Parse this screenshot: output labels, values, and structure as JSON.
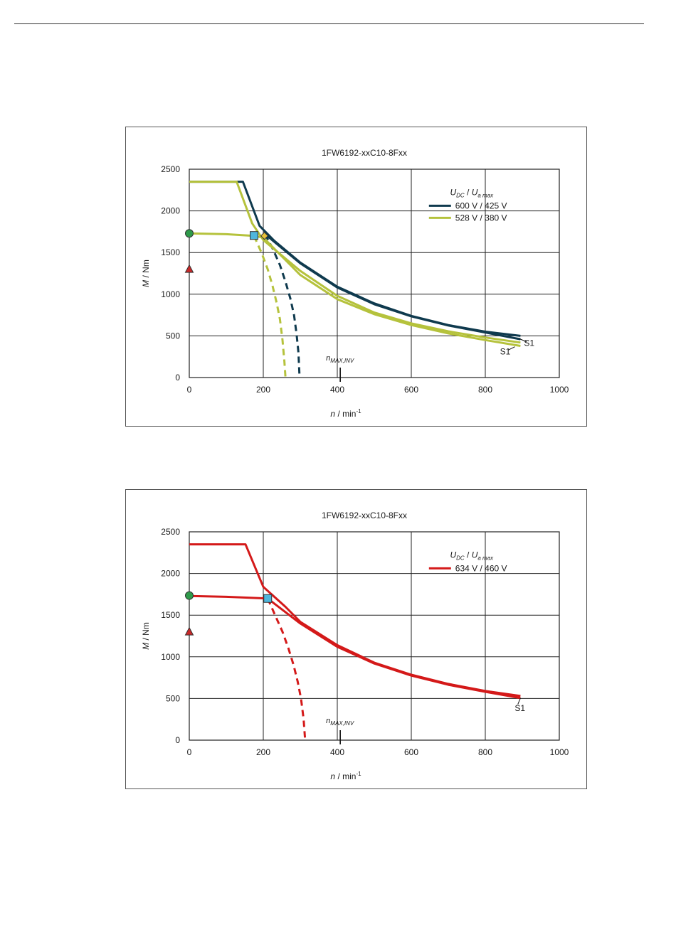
{
  "colors": {
    "grid": "#222222",
    "dark_blue": "#0f3a4e",
    "olive": "#b5c23c",
    "red": "#d41919",
    "marker_green": "#2e9a4a",
    "marker_red": "#c82828",
    "marker_cyan": "#4fb6dc",
    "marker_yellow": "#e8c23a"
  },
  "chart_data": [
    {
      "type": "line",
      "title": "1FW6192-xxC10-8Fxx",
      "xlabel_var": "n",
      "xlabel_unit": " / min",
      "xlabel_exp": "-1",
      "ylabel_var": "M",
      "ylabel_unit": " / Nm",
      "xlim": [
        0,
        1000
      ],
      "ylim": [
        0,
        2500
      ],
      "xticks": [
        0,
        200,
        400,
        600,
        800,
        1000
      ],
      "yticks": [
        0,
        500,
        1000,
        1500,
        2000,
        2500
      ],
      "grid": true,
      "legend_position": "top-right",
      "legend_header": {
        "u1": "U",
        "sub1": "DC",
        "sep": "  /  ",
        "u2": "U",
        "sub2": "a max"
      },
      "nmax_label": {
        "main": "n",
        "sub": "MAX,INV"
      },
      "nmax_x": 408,
      "series": [
        {
          "name": "600 V / 425 V",
          "color": "dark_blue",
          "segments": [
            {
              "style": "solid",
              "points": [
                [
                  0,
                  2350
                ],
                [
                  145,
                  2350
                ],
                [
                  190,
                  1820
                ],
                [
                  230,
                  1640
                ],
                [
                  300,
                  1380
                ],
                [
                  400,
                  1090
                ],
                [
                  500,
                  890
                ],
                [
                  600,
                  740
                ],
                [
                  700,
                  630
                ],
                [
                  800,
                  550
                ],
                [
                  895,
                  500
                ]
              ]
            },
            {
              "style": "solid",
              "points": [
                [
                  205,
                  1720
                ],
                [
                  300,
                  1370
                ],
                [
                  400,
                  1080
                ],
                [
                  500,
                  880
                ],
                [
                  600,
                  735
                ],
                [
                  700,
                  625
                ],
                [
                  800,
                  540
                ],
                [
                  895,
                  460
                ]
              ]
            },
            {
              "style": "dashed",
              "points": [
                [
                  205,
                  1720
                ],
                [
                  225,
                  1550
                ],
                [
                  245,
                  1350
                ],
                [
                  260,
                  1150
                ],
                [
                  273,
                  950
                ],
                [
                  283,
                  750
                ],
                [
                  290,
                  520
                ],
                [
                  295,
                  300
                ],
                [
                  298,
                  0
                ]
              ]
            }
          ]
        },
        {
          "name": "528 V / 380 V",
          "color": "olive",
          "segments": [
            {
              "style": "solid",
              "points": [
                [
                  0,
                  2350
                ],
                [
                  128,
                  2350
                ],
                [
                  170,
                  1850
                ],
                [
                  200,
                  1650
                ],
                [
                  300,
                  1280
                ],
                [
                  400,
                  980
                ],
                [
                  500,
                  780
                ],
                [
                  600,
                  650
                ],
                [
                  700,
                  555
                ],
                [
                  800,
                  480
                ],
                [
                  895,
                  420
                ]
              ]
            },
            {
              "style": "solid",
              "points": [
                [
                  0,
                  1730
                ],
                [
                  100,
                  1720
                ],
                [
                  175,
                  1700
                ],
                [
                  200,
                  1680
                ],
                [
                  300,
                  1230
                ],
                [
                  400,
                  940
                ],
                [
                  500,
                  760
                ],
                [
                  600,
                  630
                ],
                [
                  700,
                  530
                ],
                [
                  800,
                  450
                ],
                [
                  895,
                  380
                ]
              ]
            },
            {
              "style": "dashed",
              "points": [
                [
                  175,
                  1700
                ],
                [
                  195,
                  1500
                ],
                [
                  212,
                  1300
                ],
                [
                  225,
                  1100
                ],
                [
                  236,
                  900
                ],
                [
                  245,
                  700
                ],
                [
                  252,
                  450
                ],
                [
                  257,
                  200
                ],
                [
                  260,
                  0
                ]
              ]
            }
          ]
        }
      ],
      "markers": [
        {
          "shape": "circle",
          "color": "marker_green",
          "x": 0,
          "y": 1730
        },
        {
          "shape": "triangle",
          "color": "marker_red",
          "x": 0,
          "y": 1300
        },
        {
          "shape": "square",
          "color": "marker_cyan",
          "x": 175,
          "y": 1705
        },
        {
          "shape": "diamond",
          "color": "marker_yellow",
          "x": 203,
          "y": 1700
        }
      ],
      "curve_labels": [
        {
          "text": "S1",
          "x": 920,
          "y": 415
        },
        {
          "text": "S1",
          "x": 855,
          "y": 310
        }
      ],
      "legend_items": [
        {
          "label": "600 V / 425 V",
          "color": "dark_blue"
        },
        {
          "label": "528 V / 380 V",
          "color": "olive"
        }
      ]
    },
    {
      "type": "line",
      "title": "1FW6192-xxC10-8Fxx",
      "xlabel_var": "n",
      "xlabel_unit": " / min",
      "xlabel_exp": "-1",
      "ylabel_var": "M",
      "ylabel_unit": " / Nm",
      "xlim": [
        0,
        1000
      ],
      "ylim": [
        0,
        2500
      ],
      "xticks": [
        0,
        200,
        400,
        600,
        800,
        1000
      ],
      "yticks": [
        0,
        500,
        1000,
        1500,
        2000,
        2500
      ],
      "grid": true,
      "legend_position": "top-right",
      "legend_header": {
        "u1": "U",
        "sub1": "DC",
        "sep": "  /  ",
        "u2": "U",
        "sub2": "a max"
      },
      "nmax_label": {
        "main": "n",
        "sub": "MAX,INV"
      },
      "nmax_x": 408,
      "series": [
        {
          "name": "634 V / 460 V",
          "color": "red",
          "segments": [
            {
              "style": "solid",
              "points": [
                [
                  0,
                  2350
                ],
                [
                  152,
                  2350
                ],
                [
                  200,
                  1840
                ],
                [
                  260,
                  1600
                ],
                [
                  300,
                  1420
                ],
                [
                  400,
                  1140
                ],
                [
                  500,
                  930
                ],
                [
                  600,
                  785
                ],
                [
                  700,
                  675
                ],
                [
                  800,
                  590
                ],
                [
                  895,
                  530
                ]
              ]
            },
            {
              "style": "solid",
              "points": [
                [
                  0,
                  1730
                ],
                [
                  100,
                  1720
                ],
                [
                  212,
                  1700
                ],
                [
                  300,
                  1400
                ],
                [
                  400,
                  1120
                ],
                [
                  500,
                  920
                ],
                [
                  600,
                  775
                ],
                [
                  700,
                  665
                ],
                [
                  800,
                  580
                ],
                [
                  895,
                  505
                ]
              ]
            },
            {
              "style": "dashed",
              "points": [
                [
                  212,
                  1700
                ],
                [
                  232,
                  1500
                ],
                [
                  252,
                  1300
                ],
                [
                  268,
                  1100
                ],
                [
                  282,
                  900
                ],
                [
                  293,
                  700
                ],
                [
                  302,
                  500
                ],
                [
                  309,
                  250
                ],
                [
                  313,
                  0
                ]
              ]
            }
          ]
        }
      ],
      "markers": [
        {
          "shape": "circle",
          "color": "marker_green",
          "x": 0,
          "y": 1735
        },
        {
          "shape": "triangle",
          "color": "marker_red",
          "x": 0,
          "y": 1300
        },
        {
          "shape": "square",
          "color": "marker_cyan",
          "x": 212,
          "y": 1700
        }
      ],
      "curve_labels": [
        {
          "text": "S1",
          "x": 895,
          "y": 385
        }
      ],
      "legend_items": [
        {
          "label": "634 V / 460 V",
          "color": "red"
        }
      ]
    }
  ]
}
